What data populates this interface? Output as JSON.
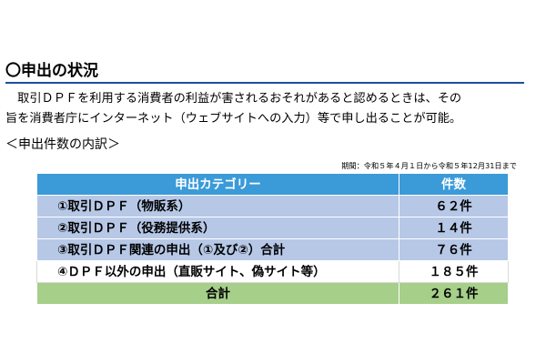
{
  "section": {
    "title": "〇申出の状況"
  },
  "paragraph": {
    "line1": "　取引ＤＰＦを利用する消費者の利益が害されるおそれがあると認めるときは、その",
    "line2": "旨を消費者庁にインターネット（ウェブサイトへの入力）等で申し出ることが可能。"
  },
  "breakdown": {
    "subtitle": "＜申出件数の内訳＞",
    "period": "期間：令和５年４月１日から令和５年12月31日まで",
    "headers": {
      "category": "申出カテゴリー",
      "count": "件数"
    },
    "rows": [
      {
        "category": "①取引ＤＰＦ（物販系）",
        "count": "６２件"
      },
      {
        "category": "②取引ＤＰＦ（役務提供系）",
        "count": "１４件"
      },
      {
        "category": "③取引ＤＰＦ関連の申出（①及び②）合計",
        "count": "７６件"
      },
      {
        "category": "④ＤＰＦ以外の申出（直販サイト、偽サイト等）",
        "count": "１８５件"
      }
    ],
    "total": {
      "label": "合計",
      "count": "２６１件"
    }
  }
}
